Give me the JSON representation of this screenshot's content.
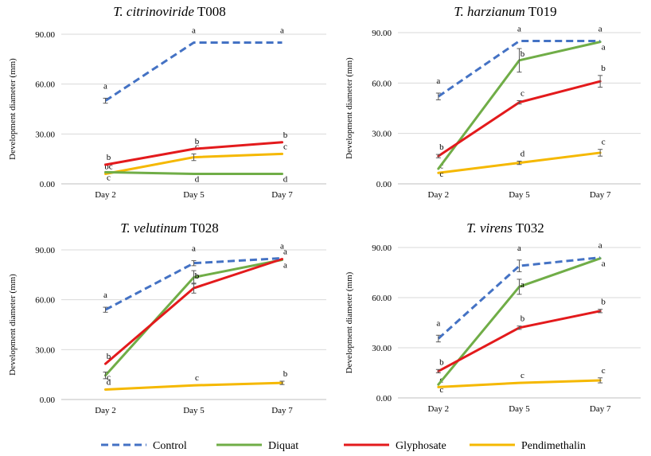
{
  "colors": {
    "Control": "#4472c4",
    "Diquat": "#70ad47",
    "Glyphosate": "#e31a1c",
    "Pendimethalin": "#f5b800"
  },
  "legend": [
    {
      "name": "Control",
      "dashed": true
    },
    {
      "name": "Diquat",
      "dashed": false
    },
    {
      "name": "Glyphosate",
      "dashed": false
    },
    {
      "name": "Pendimethalin",
      "dashed": false
    }
  ],
  "chart_data": [
    {
      "type": "line",
      "title_italic": "T. citrinoviride",
      "title_code": "T008",
      "ylabel": "Development diameter (mm)",
      "categories": [
        "Day 2",
        "Day 5",
        "Day 7"
      ],
      "y_ticks": [
        "0.00",
        "30.00",
        "60.00",
        "90.00"
      ],
      "ylim": [
        0,
        90
      ],
      "series": [
        {
          "name": "Control",
          "values": [
            50,
            85,
            85
          ],
          "errors": [
            1.5,
            0,
            0
          ],
          "letters": [
            "a",
            "a",
            "a"
          ]
        },
        {
          "name": "Diquat",
          "values": [
            7,
            6,
            6
          ],
          "errors": [
            0,
            0,
            0
          ],
          "letters": [
            "c",
            "d",
            "d"
          ]
        },
        {
          "name": "Glyphosate",
          "values": [
            11.5,
            21,
            25
          ],
          "errors": [
            0,
            0,
            0
          ],
          "letters": [
            "b",
            "b",
            "b"
          ]
        },
        {
          "name": "Pendimethalin",
          "values": [
            6,
            16,
            18
          ],
          "errors": [
            0,
            2,
            0
          ],
          "letters": [
            "bc",
            "c",
            "c"
          ]
        }
      ]
    },
    {
      "type": "line",
      "title_italic": "T. harzianum",
      "title_code": "T019",
      "ylabel": "Development diameter (mm)",
      "categories": [
        "Day 2",
        "Day 5",
        "Day 7"
      ],
      "y_ticks": [
        "0.00",
        "30.00",
        "60.00",
        "90.00"
      ],
      "ylim": [
        0,
        90
      ],
      "series": [
        {
          "name": "Control",
          "values": [
            52,
            85,
            85
          ],
          "errors": [
            2,
            0,
            0
          ],
          "letters": [
            "a",
            "a",
            "a"
          ]
        },
        {
          "name": "Diquat",
          "values": [
            9,
            73.5,
            84.5
          ],
          "errors": [
            0,
            7,
            0
          ],
          "letters": [
            "c",
            "b",
            "a"
          ]
        },
        {
          "name": "Glyphosate",
          "values": [
            16.5,
            48.5,
            61
          ],
          "errors": [
            1,
            1,
            3.5
          ],
          "letters": [
            "b",
            "c",
            "b"
          ]
        },
        {
          "name": "Pendimethalin",
          "values": [
            6.5,
            12.5,
            18.5
          ],
          "errors": [
            0,
            1,
            2
          ],
          "letters": [
            "c",
            "d",
            "c"
          ]
        }
      ]
    },
    {
      "type": "line",
      "title_italic": "T. velutinum",
      "title_code": "T028",
      "ylabel": "Development diameter (mm)",
      "categories": [
        "Day 2",
        "Day 5",
        "Day 7"
      ],
      "y_ticks": [
        "0.00",
        "30.00",
        "60.00",
        "90.00"
      ],
      "ylim": [
        0,
        90
      ],
      "series": [
        {
          "name": "Control",
          "values": [
            54,
            82,
            85
          ],
          "errors": [
            1.5,
            1.5,
            0
          ],
          "letters": [
            "a",
            "a",
            "a"
          ]
        },
        {
          "name": "Diquat",
          "values": [
            14.5,
            73.5,
            84
          ],
          "errors": [
            2,
            4,
            0
          ],
          "letters": [
            "c",
            "b",
            "a"
          ]
        },
        {
          "name": "Glyphosate",
          "values": [
            21.5,
            67,
            84.5
          ],
          "errors": [
            0,
            3,
            0
          ],
          "letters": [
            "b",
            "b",
            "a"
          ]
        },
        {
          "name": "Pendimethalin",
          "values": [
            6,
            8.5,
            10
          ],
          "errors": [
            0,
            0,
            1
          ],
          "letters": [
            "d",
            "c",
            "b"
          ]
        }
      ]
    },
    {
      "type": "line",
      "title_italic": "T. virens",
      "title_code": "T032",
      "ylabel": "Development diameter (mm)",
      "categories": [
        "Day 2",
        "Day 5",
        "Day 7"
      ],
      "y_ticks": [
        "0.00",
        "30.00",
        "60.00",
        "90.00"
      ],
      "ylim": [
        0,
        90
      ],
      "series": [
        {
          "name": "Control",
          "values": [
            35.5,
            79,
            84
          ],
          "errors": [
            2,
            3.5,
            0
          ],
          "letters": [
            "a",
            "a",
            "a"
          ]
        },
        {
          "name": "Diquat",
          "values": [
            8,
            66.5,
            83.5
          ],
          "errors": [
            0,
            4.5,
            0
          ],
          "letters": [
            "c",
            "a",
            "a"
          ]
        },
        {
          "name": "Glyphosate",
          "values": [
            16,
            42,
            52
          ],
          "errors": [
            1,
            1,
            1
          ],
          "letters": [
            "b",
            "b",
            "b"
          ]
        },
        {
          "name": "Pendimethalin",
          "values": [
            6.5,
            9,
            10.5
          ],
          "errors": [
            0,
            0,
            1.5
          ],
          "letters": [
            "c",
            "c",
            "c"
          ]
        }
      ]
    }
  ]
}
